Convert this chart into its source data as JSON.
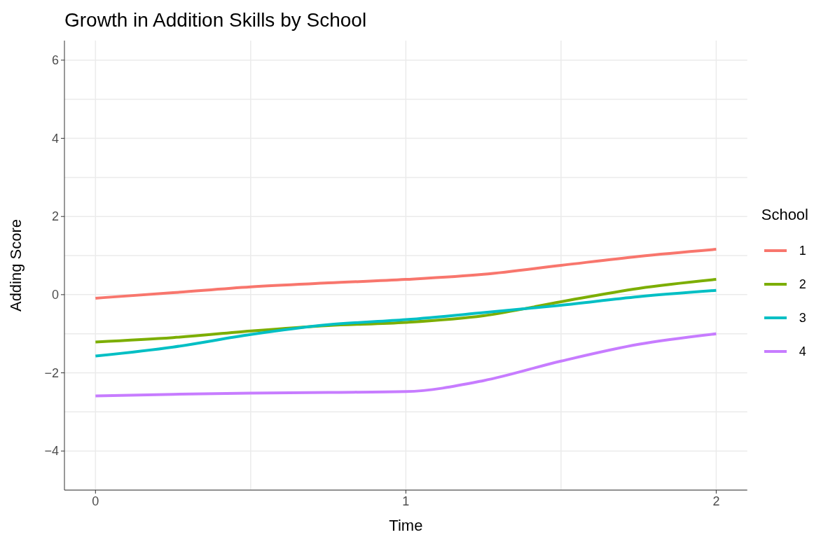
{
  "chart_data": {
    "type": "line",
    "title": "Growth in Addition Skills by School",
    "xlabel": "Time",
    "ylabel": "Adding Score",
    "legend_title": "School",
    "x": [
      0,
      0.25,
      0.5,
      0.75,
      1,
      1.25,
      1.5,
      1.75,
      2
    ],
    "series": [
      {
        "name": "1",
        "color": "#f8766d",
        "values": [
          -0.09,
          0.05,
          0.2,
          0.3,
          0.39,
          0.52,
          0.75,
          0.98,
          1.16
        ]
      },
      {
        "name": "2",
        "color": "#7cae00",
        "values": [
          -1.21,
          -1.1,
          -0.93,
          -0.79,
          -0.71,
          -0.54,
          -0.18,
          0.16,
          0.39
        ]
      },
      {
        "name": "3",
        "color": "#00bfc4",
        "values": [
          -1.57,
          -1.34,
          -1.02,
          -0.77,
          -0.64,
          -0.46,
          -0.27,
          -0.05,
          0.11
        ]
      },
      {
        "name": "4",
        "color": "#c77cff",
        "values": [
          -2.59,
          -2.55,
          -2.52,
          -2.5,
          -2.48,
          -2.2,
          -1.7,
          -1.27,
          -1.0
        ]
      }
    ],
    "xlim": [
      -0.1,
      2.1
    ],
    "xticks": [
      0,
      {
        "value": 0.5,
        "label": null
      },
      1,
      {
        "value": 1.5,
        "label": null
      },
      2
    ],
    "ylim": [
      -5,
      6.5
    ],
    "yticks": [
      {
        "value": -5,
        "label": null
      },
      {
        "value": -4,
        "label": "−4"
      },
      {
        "value": -3,
        "label": null
      },
      {
        "value": -2,
        "label": "−2"
      },
      {
        "value": -1,
        "label": null
      },
      0,
      {
        "value": 1,
        "label": null
      },
      2,
      {
        "value": 3,
        "label": null
      },
      4,
      {
        "value": 5,
        "label": null
      },
      6
    ],
    "grid": true,
    "legend": "right",
    "marker": "none",
    "line_style": "solid"
  }
}
